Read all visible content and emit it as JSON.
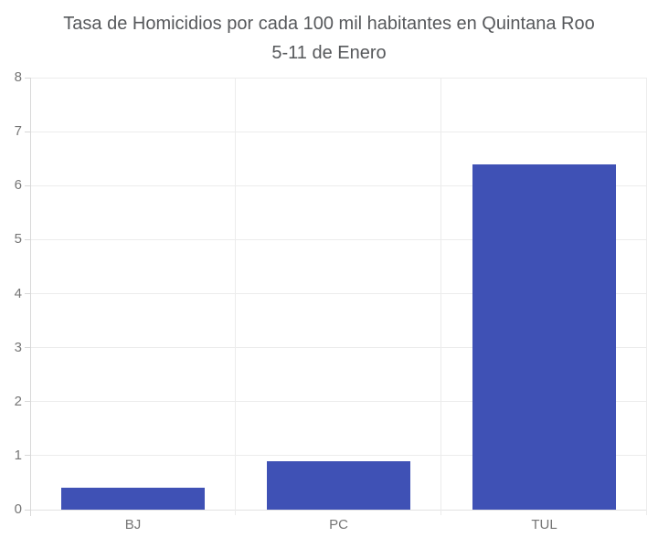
{
  "chart_data": {
    "type": "bar",
    "title": "Tasa de Homicidios por cada 100 mil habitantes en Quintana Roo",
    "subtitle": "5-11 de Enero",
    "categories": [
      "BJ",
      "PC",
      "TUL"
    ],
    "values": [
      0.4,
      0.9,
      6.4
    ],
    "xlabel": "",
    "ylabel": "",
    "ylim": [
      0,
      8
    ],
    "yticks": [
      0,
      1,
      2,
      3,
      4,
      5,
      6,
      7,
      8
    ],
    "grid": true,
    "legend": "none",
    "bar_color": "#3f51b5",
    "title_color": "#56585b",
    "axis_label_color": "#757575"
  }
}
